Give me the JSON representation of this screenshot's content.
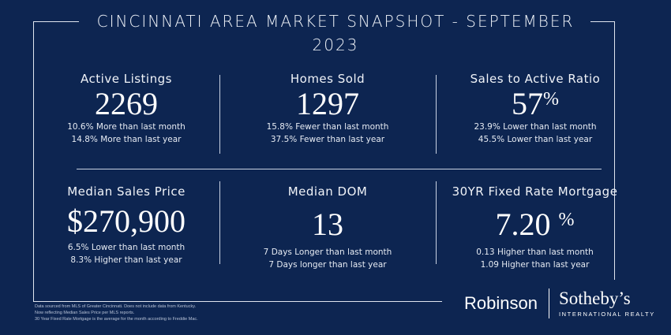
{
  "title": "CINCINNATI AREA MARKET SNAPSHOT - SEPTEMBER 2023",
  "stats": [
    {
      "label": "Active Listings",
      "value": "2269",
      "unit": "",
      "line1": "10.6% More than last month",
      "line2": "14.8% More than last year"
    },
    {
      "label": "Homes Sold",
      "value": "1297",
      "unit": "",
      "line1": "15.8% Fewer than last month",
      "line2": "37.5% Fewer than last year"
    },
    {
      "label": "Sales to Active Ratio",
      "value": "57",
      "unit": "%",
      "line1": "23.9% Lower than last month",
      "line2": "45.5% Lower than last year"
    },
    {
      "label": "Median Sales Price",
      "value": "$270,900",
      "unit": "",
      "line1": "6.5% Lower than last month",
      "line2": "8.3% Higher than last year"
    },
    {
      "label": "Median DOM",
      "value": "13",
      "unit": "",
      "line1": "7 Days Longer than last month",
      "line2": "7 Days longer than last year"
    },
    {
      "label": "30YR Fixed Rate Mortgage",
      "value": "7.20",
      "unit": "%",
      "line1": "0.13 Higher than last month",
      "line2": "1.09 Higher than last year"
    }
  ],
  "footnote": {
    "line1": "Data sourced from MLS of Greater Cincinnati.  Does not include data from Kentucky.",
    "line2": "Now reflecting Median Sales Price per MLS reports.",
    "line3": "30 Year Fixed Rate Mortgage is the average for the month according to Freddie Mac."
  },
  "brand": {
    "robinson": "Robinson",
    "sothebys": "Sotheby’s",
    "tagline": "INTERNATIONAL REALTY"
  }
}
